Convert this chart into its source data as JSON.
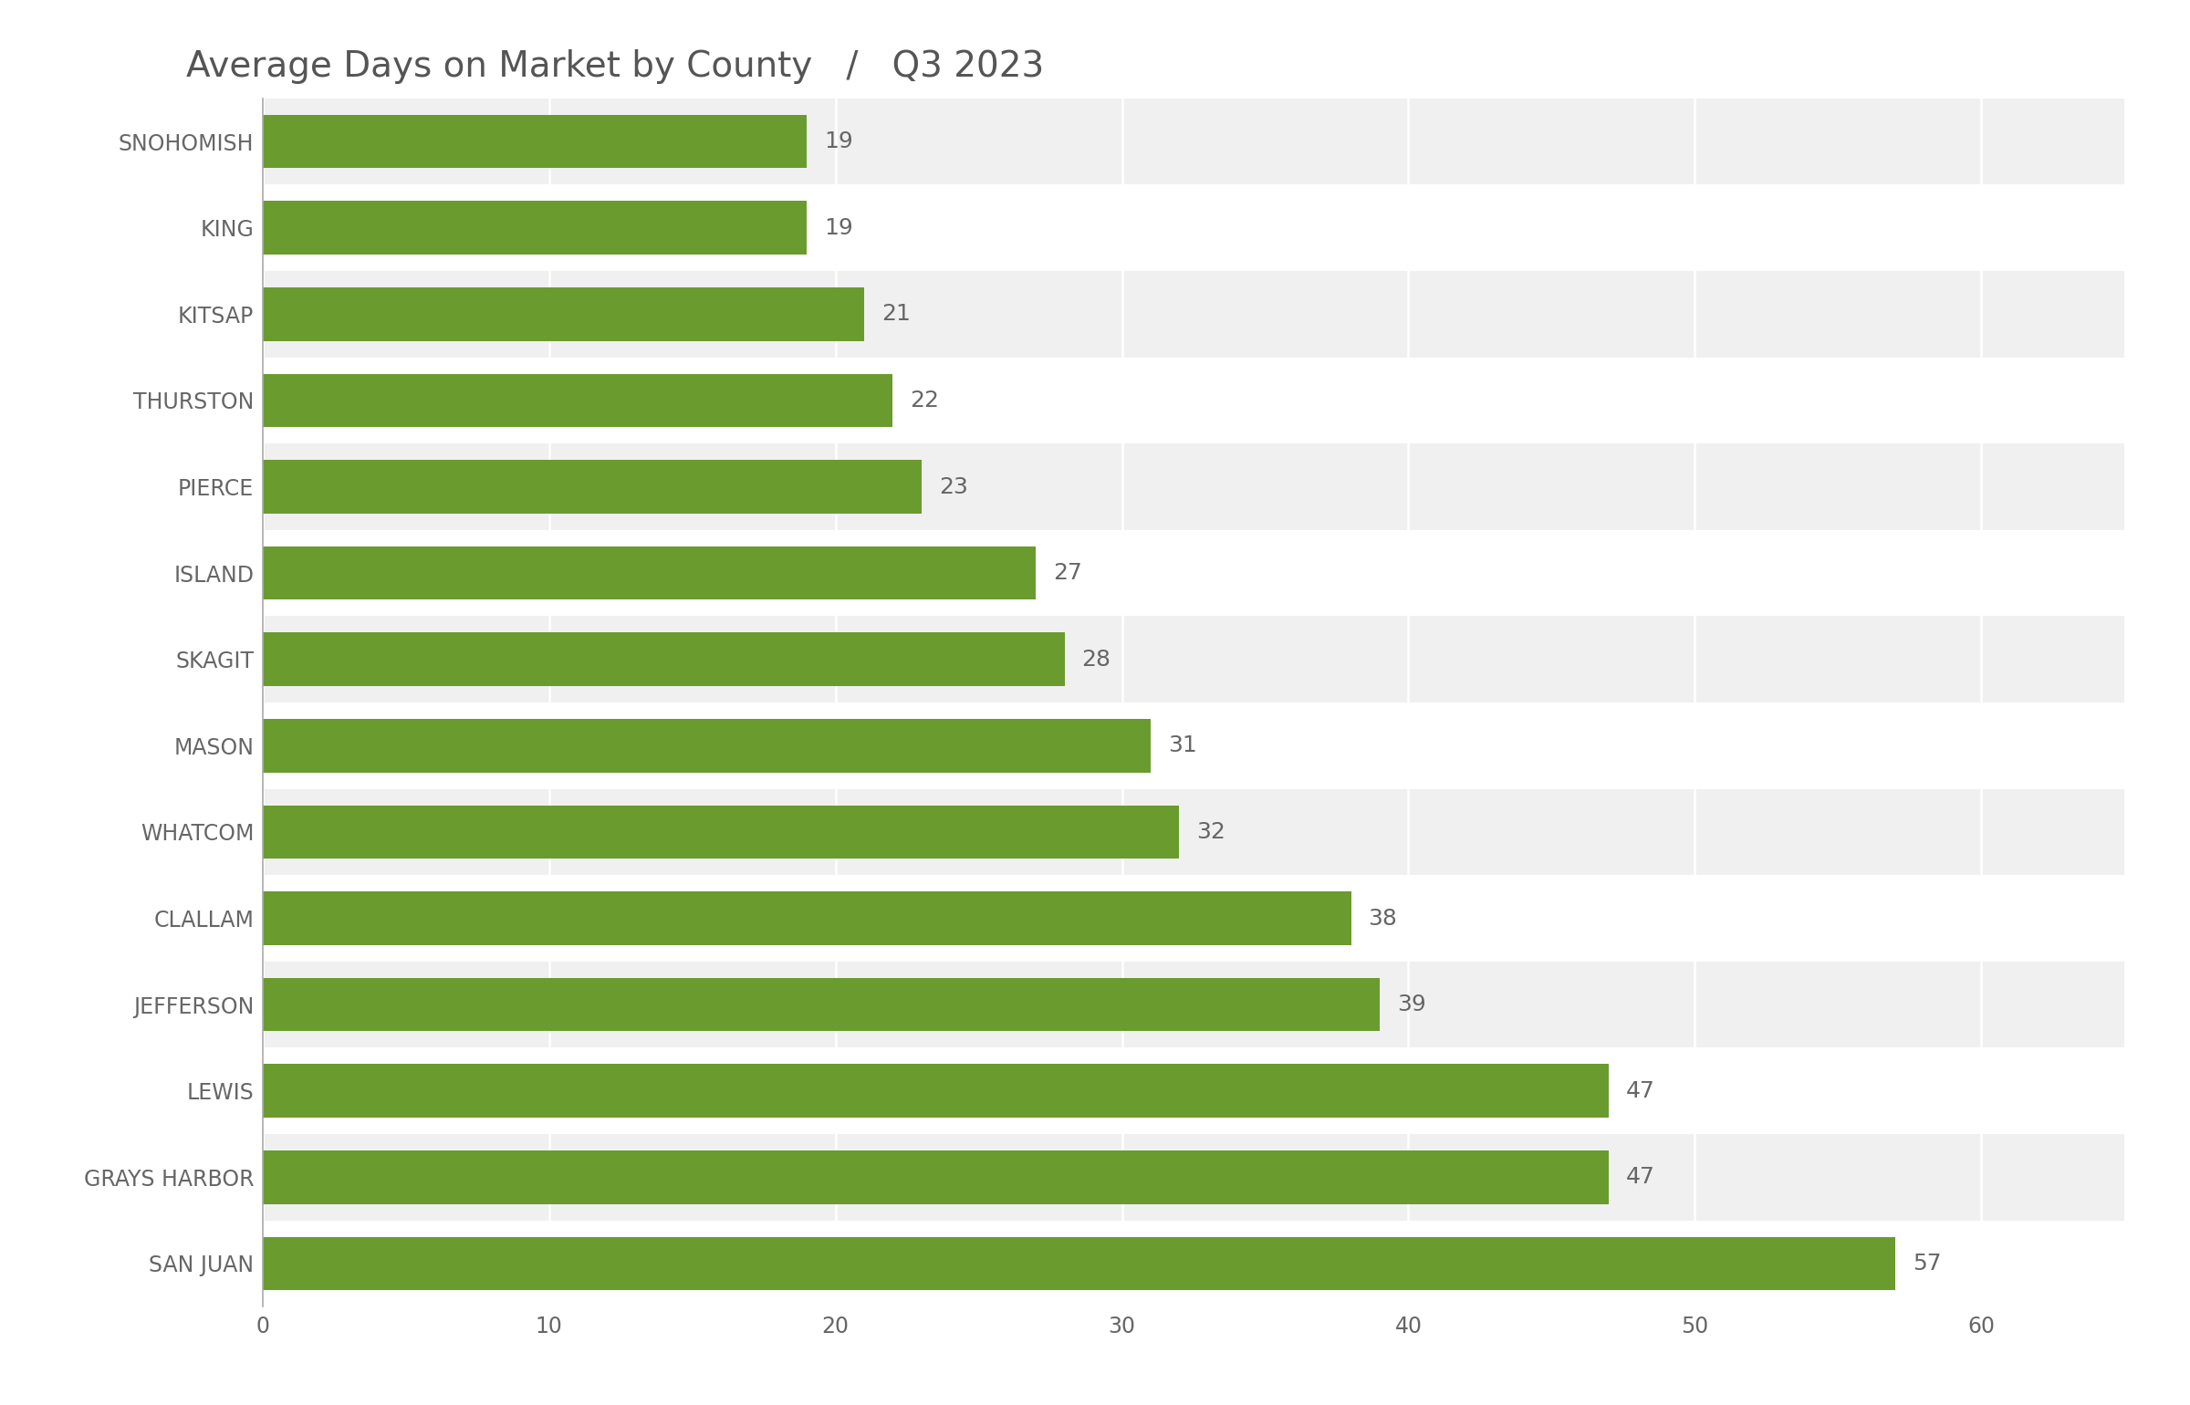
{
  "title": "Average Days on Market by County",
  "subtitle": "Q3 2023",
  "counties": [
    "SAN JUAN",
    "GRAYS HARBOR",
    "LEWIS",
    "JEFFERSON",
    "CLALLAM",
    "WHATCOM",
    "MASON",
    "SKAGIT",
    "ISLAND",
    "PIERCE",
    "THURSTON",
    "KITSAP",
    "KING",
    "SNOHOMISH"
  ],
  "values": [
    57,
    47,
    47,
    39,
    38,
    32,
    31,
    28,
    27,
    23,
    22,
    21,
    19,
    19
  ],
  "bar_color": "#6a9b2f",
  "label_color": "#666666",
  "title_color": "#555555",
  "tick_label_color": "#666666",
  "background_color": "#ffffff",
  "row_alt_color": "#f0f0f0",
  "row_main_color": "#ffffff",
  "xlim": [
    0,
    65
  ],
  "xticks": [
    0,
    10,
    20,
    30,
    40,
    50,
    60
  ],
  "bar_height": 0.62,
  "title_fontsize": 28,
  "tick_fontsize": 17,
  "value_fontsize": 18
}
